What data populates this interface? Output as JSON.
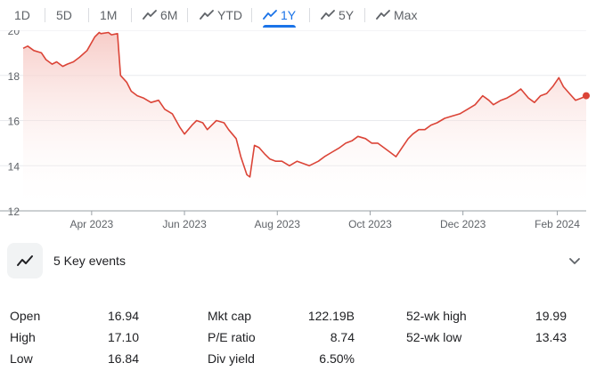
{
  "tabs": [
    {
      "label": "1D",
      "icon": "",
      "active": false
    },
    {
      "label": "5D",
      "icon": "",
      "active": false
    },
    {
      "label": "1M",
      "icon": "",
      "active": false
    },
    {
      "label": "6M",
      "icon": "trend-icon",
      "active": false
    },
    {
      "label": "YTD",
      "icon": "trend-icon",
      "active": false
    },
    {
      "label": "1Y",
      "icon": "trend-icon",
      "active": true
    },
    {
      "label": "5Y",
      "icon": "trend-icon",
      "active": false
    },
    {
      "label": "Max",
      "icon": "trend-icon",
      "active": false
    }
  ],
  "colors": {
    "line": "#db4437",
    "fill_top": "#f6c7c2",
    "active_tab": "#1a73e8",
    "text": "#202124",
    "muted": "#5f6368"
  },
  "chart_data": {
    "type": "area",
    "ylim": [
      12,
      20
    ],
    "y_ticks": [
      "20",
      "18",
      "16",
      "14",
      "12"
    ],
    "x_range": [
      "2023-02-15",
      "2024-02-20"
    ],
    "x_ticks": [
      {
        "label": "Apr 2023",
        "date": "2023-04-01"
      },
      {
        "label": "Jun 2023",
        "date": "2023-06-01"
      },
      {
        "label": "Aug 2023",
        "date": "2023-08-01"
      },
      {
        "label": "Oct 2023",
        "date": "2023-10-01"
      },
      {
        "label": "Dec 2023",
        "date": "2023-12-01"
      },
      {
        "label": "Feb 2024",
        "date": "2024-02-01"
      }
    ],
    "grid": "horizontal",
    "series": [
      {
        "x": [
          "2023-02-15",
          "2023-02-18",
          "2023-02-22",
          "2023-02-27",
          "2023-03-02",
          "2023-03-06",
          "2023-03-09",
          "2023-03-13",
          "2023-03-16",
          "2023-03-20",
          "2023-03-24",
          "2023-03-29",
          "2023-04-03",
          "2023-04-06",
          "2023-04-07",
          "2023-04-12",
          "2023-04-14",
          "2023-04-18",
          "2023-04-20",
          "2023-04-24",
          "2023-04-27",
          "2023-05-01",
          "2023-05-05",
          "2023-05-10",
          "2023-05-15",
          "2023-05-19",
          "2023-05-24",
          "2023-05-29",
          "2023-06-01",
          "2023-06-06",
          "2023-06-09",
          "2023-06-13",
          "2023-06-16",
          "2023-06-19",
          "2023-06-22",
          "2023-06-27",
          "2023-06-30",
          "2023-07-05",
          "2023-07-08",
          "2023-07-12",
          "2023-07-14",
          "2023-07-17",
          "2023-07-20",
          "2023-07-24",
          "2023-07-27",
          "2023-07-31",
          "2023-08-04",
          "2023-08-09",
          "2023-08-14",
          "2023-08-18",
          "2023-08-22",
          "2023-08-28",
          "2023-09-01",
          "2023-09-06",
          "2023-09-11",
          "2023-09-15",
          "2023-09-19",
          "2023-09-23",
          "2023-09-28",
          "2023-10-02",
          "2023-10-06",
          "2023-10-10",
          "2023-10-14",
          "2023-10-18",
          "2023-10-22",
          "2023-10-26",
          "2023-10-29",
          "2023-11-02",
          "2023-11-06",
          "2023-11-10",
          "2023-11-14",
          "2023-11-19",
          "2023-11-24",
          "2023-11-29",
          "2023-12-04",
          "2023-12-09",
          "2023-12-14",
          "2023-12-18",
          "2023-12-21",
          "2023-12-26",
          "2023-12-30",
          "2024-01-04",
          "2024-01-08",
          "2024-01-13",
          "2024-01-17",
          "2024-01-21",
          "2024-01-25",
          "2024-01-29",
          "2024-02-02",
          "2024-02-05",
          "2024-02-09",
          "2024-02-13",
          "2024-02-17",
          "2024-02-20"
        ],
        "y": [
          19.2,
          19.3,
          19.1,
          19.0,
          18.7,
          18.5,
          18.6,
          18.4,
          18.5,
          18.6,
          18.8,
          19.1,
          19.7,
          19.9,
          19.85,
          19.9,
          19.8,
          19.85,
          18.0,
          17.7,
          17.3,
          17.1,
          17.0,
          16.8,
          16.9,
          16.5,
          16.3,
          15.7,
          15.4,
          15.8,
          16.0,
          15.9,
          15.6,
          15.8,
          16.0,
          15.9,
          15.6,
          15.2,
          14.4,
          13.6,
          13.5,
          14.9,
          14.8,
          14.5,
          14.3,
          14.2,
          14.2,
          14.0,
          14.2,
          14.1,
          14.0,
          14.2,
          14.4,
          14.6,
          14.8,
          15.0,
          15.1,
          15.3,
          15.2,
          15.0,
          15.0,
          14.8,
          14.6,
          14.4,
          14.8,
          15.2,
          15.4,
          15.6,
          15.6,
          15.8,
          15.9,
          16.1,
          16.2,
          16.3,
          16.5,
          16.7,
          17.1,
          16.9,
          16.7,
          16.9,
          17.0,
          17.2,
          17.4,
          17.0,
          16.8,
          17.1,
          17.2,
          17.5,
          17.9,
          17.5,
          17.2,
          16.9,
          17.0,
          17.1
        ]
      }
    ]
  },
  "key_events": {
    "icon": "trend-icon",
    "label": "5 Key events",
    "chevron": "chevron-down-icon"
  },
  "stats": [
    [
      {
        "label": "Open",
        "value": "16.94"
      },
      {
        "label": "Mkt cap",
        "value": "122.19B"
      },
      {
        "label": "52-wk high",
        "value": "19.99"
      }
    ],
    [
      {
        "label": "High",
        "value": "17.10"
      },
      {
        "label": "P/E ratio",
        "value": "8.74"
      },
      {
        "label": "52-wk low",
        "value": "13.43"
      }
    ],
    [
      {
        "label": "Low",
        "value": "16.84"
      },
      {
        "label": "Div yield",
        "value": "6.50%"
      }
    ]
  ]
}
